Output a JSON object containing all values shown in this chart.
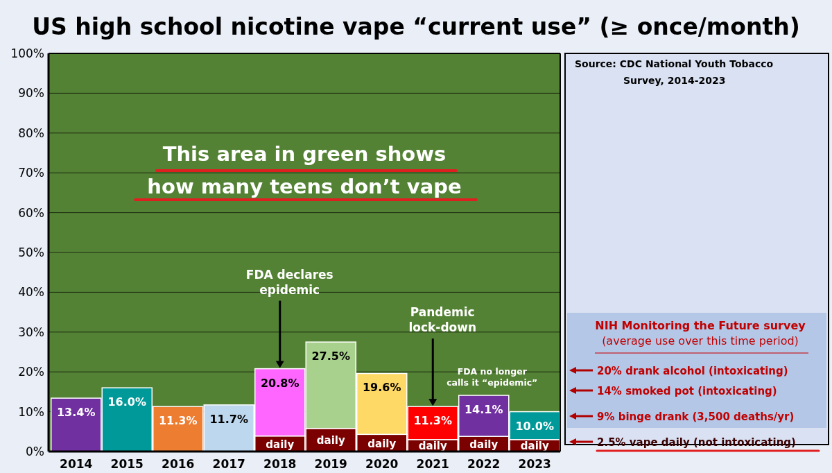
{
  "chart_data": {
    "type": "bar",
    "title": "US high school nicotine vape “current use” (≥ once/month)",
    "stacked": true,
    "categories": [
      "2014",
      "2015",
      "2016",
      "2017",
      "2018",
      "2019",
      "2020",
      "2021",
      "2022",
      "2023"
    ],
    "series": [
      {
        "name": "daily",
        "color": "#7b0000",
        "values": [
          null,
          null,
          null,
          null,
          3.9,
          5.8,
          4.3,
          3.0,
          3.8,
          3.0
        ]
      },
      {
        "colors": [
          "#7030a0",
          "#009999",
          "#ed7d31",
          "#bdd7ee",
          "#ff66ff",
          "#a9d18e",
          "#ffd966",
          "#ff0000",
          "#7030a0",
          "#009999"
        ],
        "values": [
          13.4,
          16.0,
          11.3,
          11.7,
          16.9,
          21.7,
          15.3,
          8.3,
          10.3,
          7.0
        ]
      }
    ],
    "totals": [
      "13.4%",
      "16.0%",
      "11.3%",
      "11.7%",
      "20.8%",
      "27.5%",
      "19.6%",
      "11.3%",
      "14.1%",
      "10.0%"
    ],
    "ylim": [
      0,
      100
    ],
    "yticks": [
      {
        "value": 0,
        "label": "0%"
      },
      {
        "value": 10,
        "label": "10%"
      },
      {
        "value": 20,
        "label": "20%"
      },
      {
        "value": 30,
        "label": "30%"
      },
      {
        "value": 40,
        "label": "40%"
      },
      {
        "value": 50,
        "label": "50%"
      },
      {
        "value": 60,
        "label": "60%"
      },
      {
        "value": 70,
        "label": "70%"
      },
      {
        "value": 80,
        "label": "80%"
      },
      {
        "value": 90,
        "label": "90%"
      },
      {
        "value": 100,
        "label": "100%"
      }
    ],
    "grid": "y",
    "annotations": [
      "Source: CDC National Youth Tobacco Survey, 2014-2023",
      "This area in green shows how many teens don’t vape",
      "NIH Monitoring the Future survey (average use over this time period)",
      "20% drank alcohol (intoxicating)",
      "14% smoked pot (intoxicating)",
      "9% binge drank (3,500 deaths/yr)",
      "2.5% vape daily (not intoxicating)",
      {
        "text": "FDA declares epidemic",
        "x": "2018",
        "y": 20.8
      },
      {
        "text": "Pandemic lock-down",
        "x": "2021",
        "y": 11.3
      },
      {
        "text": "FDA no longer calls it “epidemic”",
        "x": "2022",
        "y": 14.1
      }
    ]
  }
}
